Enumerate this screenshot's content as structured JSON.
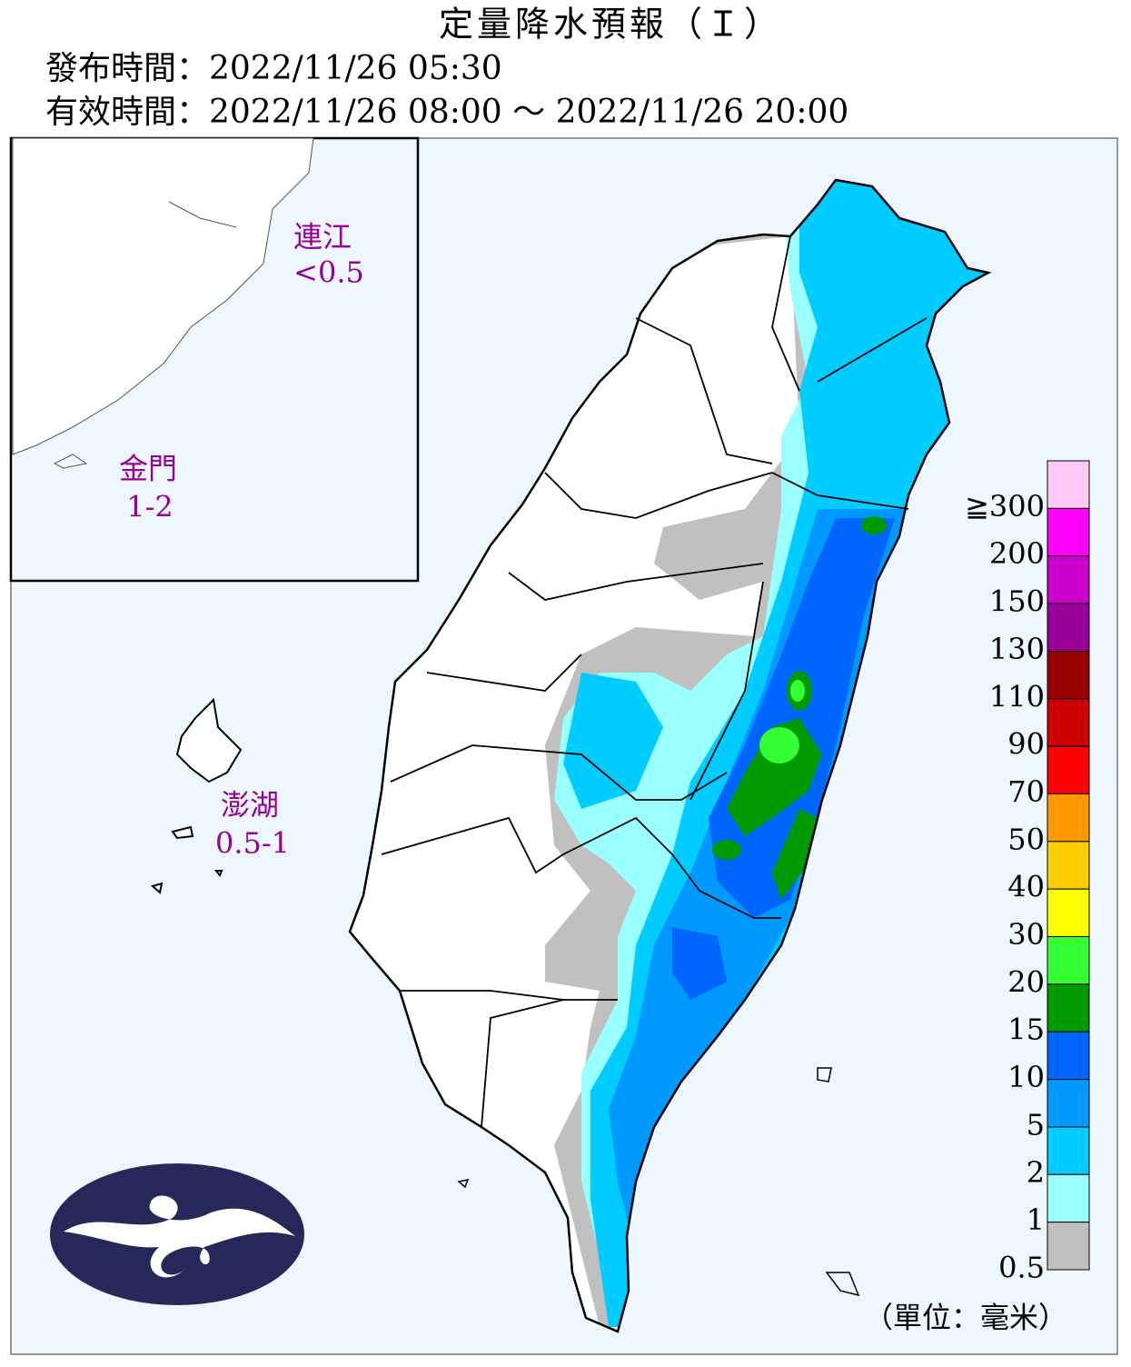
{
  "header": {
    "title": "定量降水預報（Ｉ）",
    "issued": "發布時間：2022/11/26 05:30",
    "valid": "有效時間：2022/11/26 08:00 ～ 2022/11/26 20:00"
  },
  "regions": [
    {
      "name": "連江",
      "amount": "<0.5"
    },
    {
      "name": "金門",
      "amount": "1-2"
    },
    {
      "name": "澎湖",
      "amount": "0.5-1"
    }
  ],
  "legend": {
    "items": [
      {
        "label": "≧300",
        "color": "#ffc8f5"
      },
      {
        "label": "200",
        "color": "#ff00ff"
      },
      {
        "label": "150",
        "color": "#cc00cc"
      },
      {
        "label": "130",
        "color": "#990099"
      },
      {
        "label": "110",
        "color": "#990000"
      },
      {
        "label": "90",
        "color": "#cc0000"
      },
      {
        "label": "70",
        "color": "#ff0000"
      },
      {
        "label": "50",
        "color": "#ff9900"
      },
      {
        "label": "40",
        "color": "#ffcc00"
      },
      {
        "label": "30",
        "color": "#ffff00"
      },
      {
        "label": "20",
        "color": "#33ff33"
      },
      {
        "label": "15",
        "color": "#009900"
      },
      {
        "label": "10",
        "color": "#0066ff"
      },
      {
        "label": "5",
        "color": "#0099ff"
      },
      {
        "label": "2",
        "color": "#00ccff"
      },
      {
        "label": "1",
        "color": "#99ffff"
      },
      {
        "label": "0.5",
        "color": "#c0c0c0"
      }
    ],
    "unit": "（單位：毫米）"
  }
}
